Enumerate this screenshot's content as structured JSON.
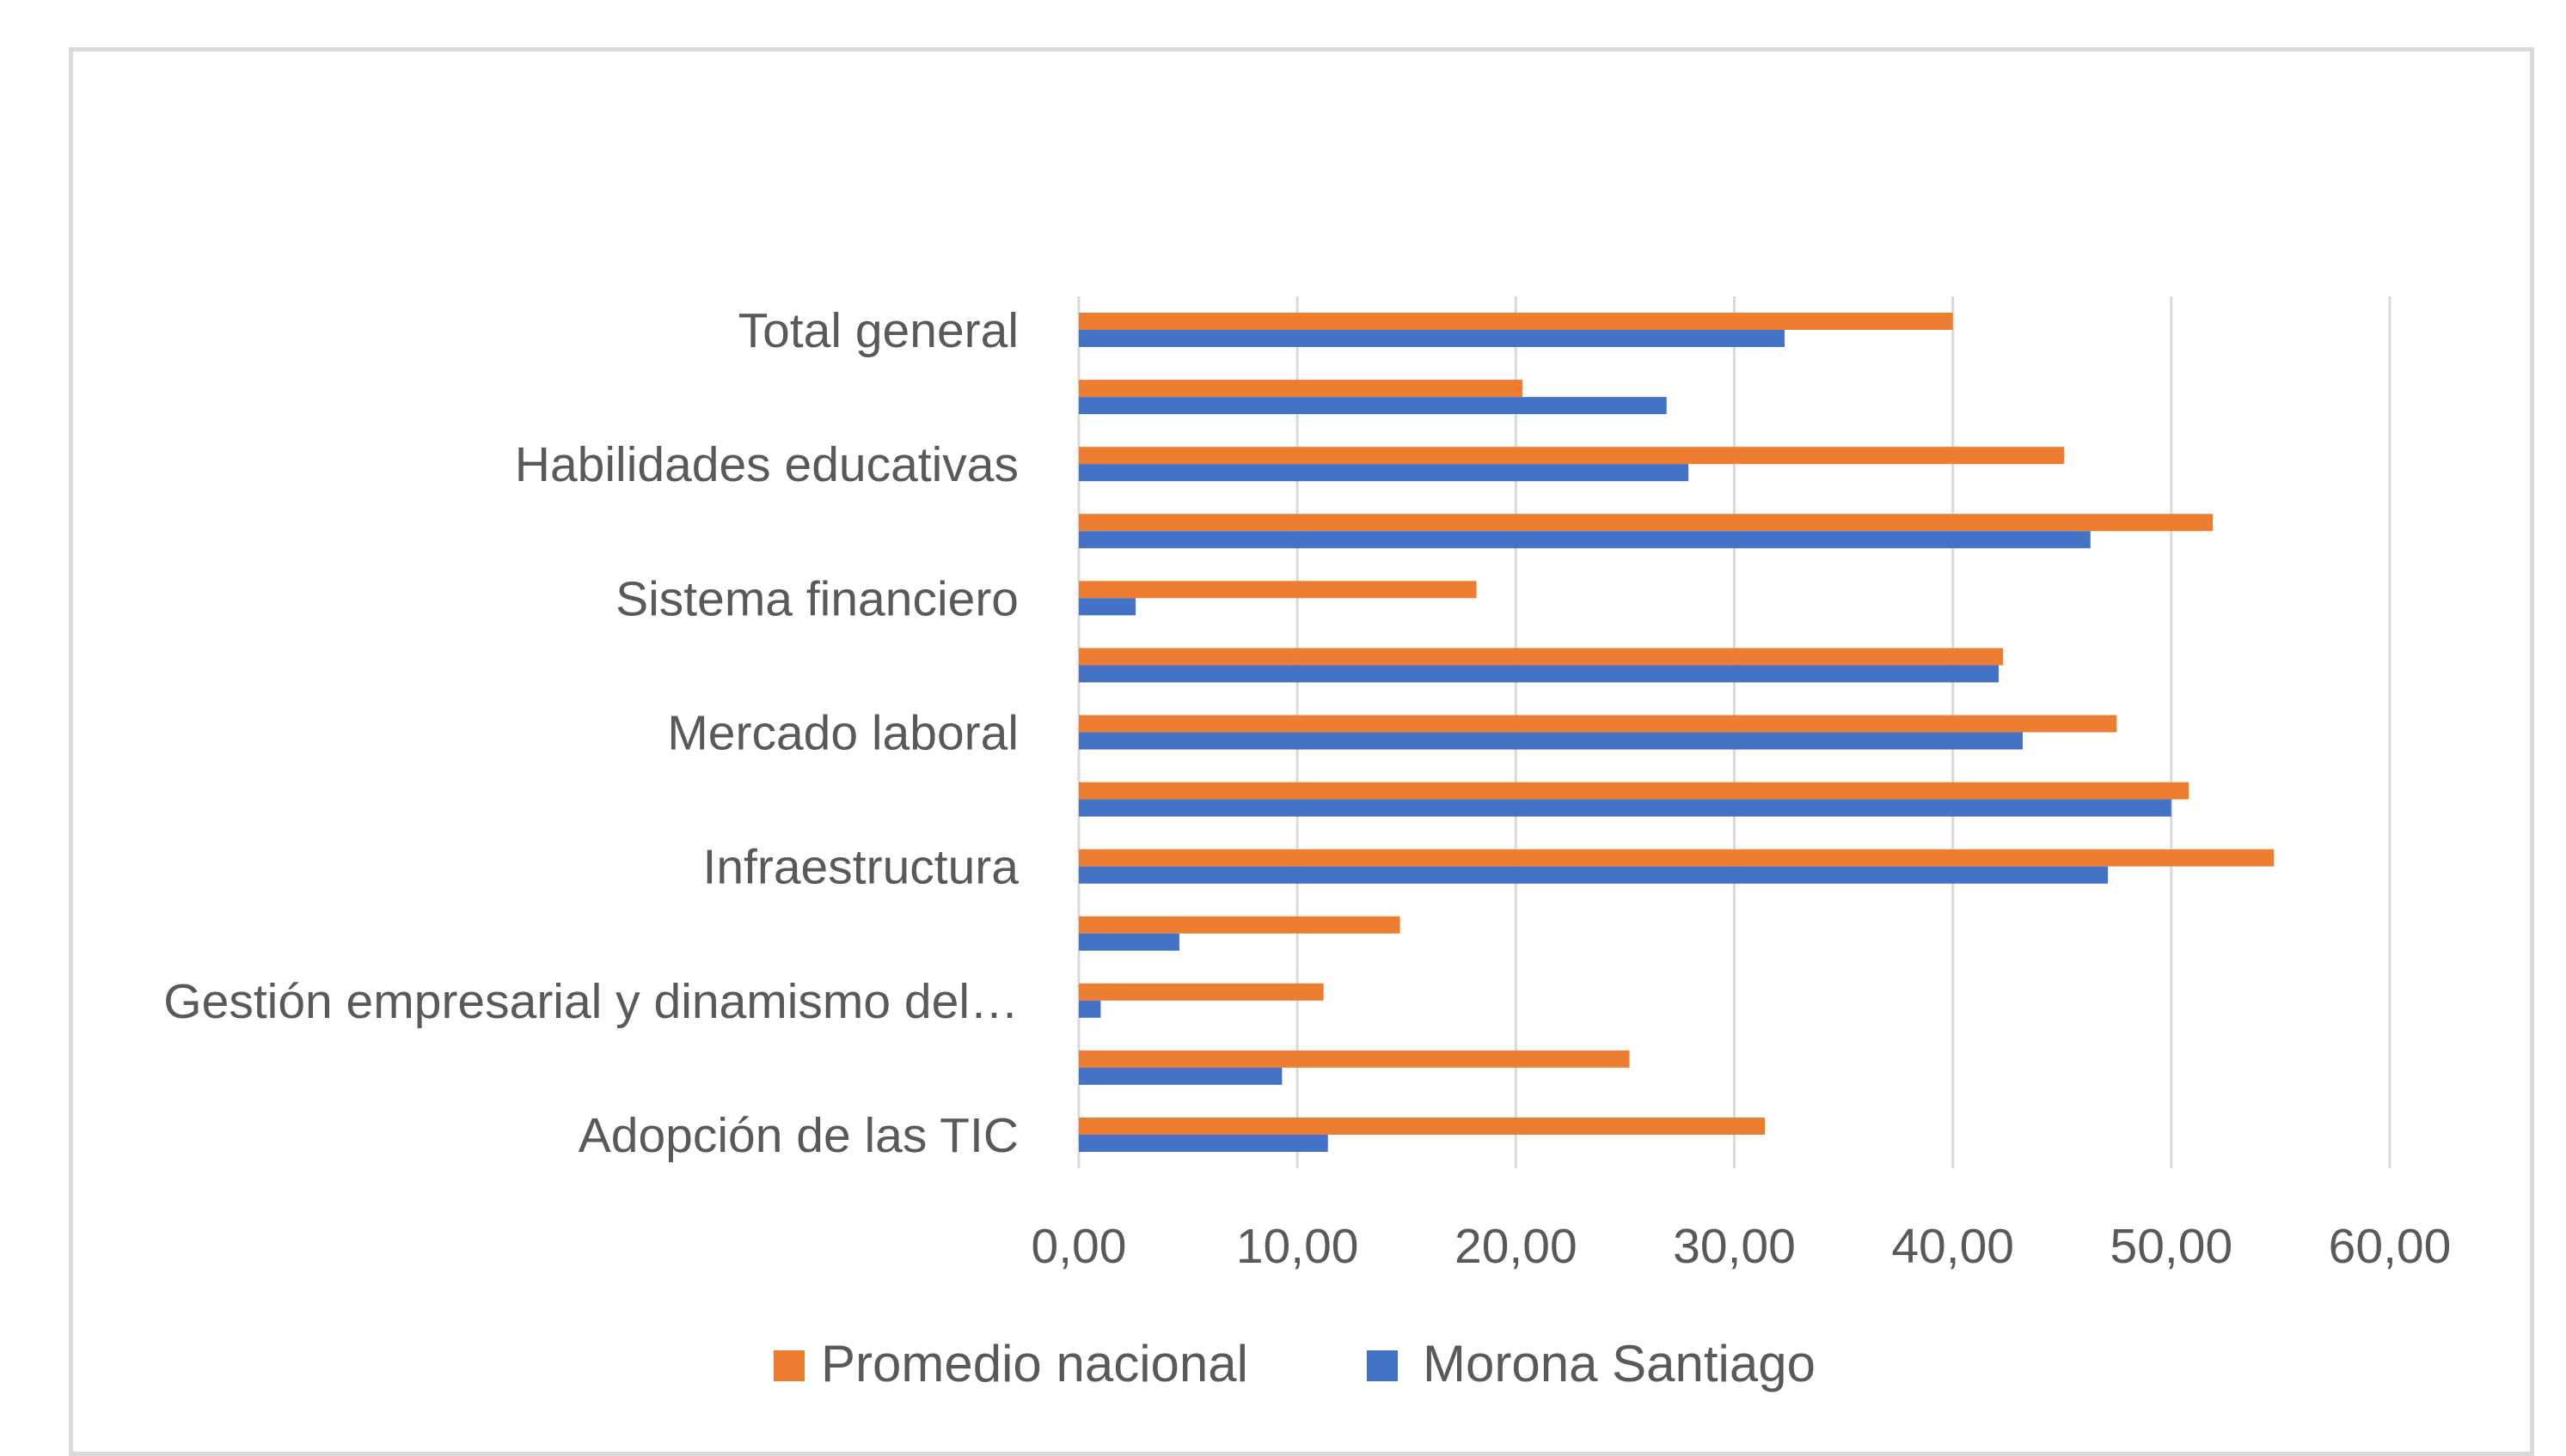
{
  "chart_data": {
    "type": "bar",
    "orientation": "horizontal",
    "title": "",
    "xlabel": "",
    "ylabel": "",
    "xlim": [
      0,
      60
    ],
    "grid": true,
    "legend_position": "bottom",
    "x_tick_labels": [
      "0,00",
      "10,00",
      "20,00",
      "30,00",
      "40,00",
      "50,00",
      "60,00"
    ],
    "categories": [
      "Total general",
      "",
      "Habilidades educativas",
      "",
      "Sistema financiero",
      "",
      "Mercado laboral",
      "",
      "Infraestructura",
      "",
      "Gestión empresarial y dinamismo del…",
      "",
      "Adopción de las TIC"
    ],
    "series": [
      {
        "name": "Promedio nacional",
        "color": "#ed7d31",
        "values": [
          40.0,
          20.3,
          45.1,
          51.9,
          18.2,
          42.3,
          47.5,
          50.8,
          54.7,
          14.7,
          11.2,
          25.2,
          31.4
        ]
      },
      {
        "name": "Morona Santiago",
        "color": "#4472c4",
        "values": [
          32.3,
          26.9,
          27.9,
          46.3,
          2.6,
          42.1,
          43.2,
          50.0,
          47.1,
          4.6,
          1.0,
          9.3,
          11.4
        ]
      }
    ]
  },
  "colors": {
    "grid": "#d9d9d9",
    "text": "#595959",
    "frame": "#d9d9d9"
  }
}
